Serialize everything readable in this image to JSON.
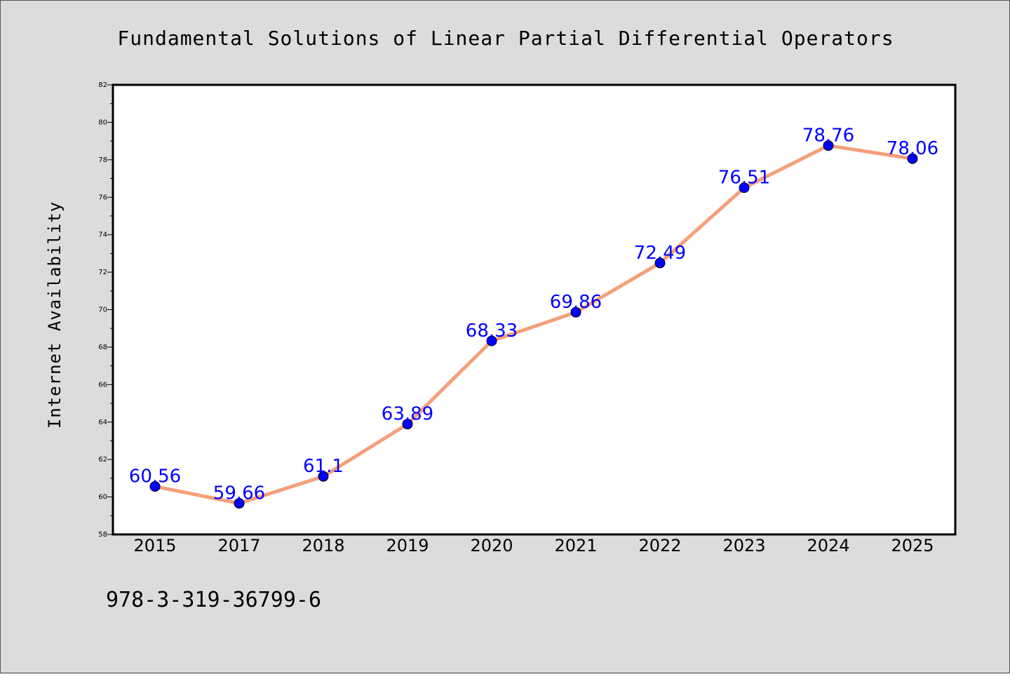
{
  "colors": {
    "background": "#dcdcdc",
    "plot_background": "#ffffff",
    "line": "#f4a07a",
    "marker": "#0000ff",
    "data_label": "#0000ff"
  },
  "footer_text": "978-3-319-36799-6",
  "chart_data": {
    "type": "line",
    "title": "Fundamental Solutions of Linear Partial Differential Operators",
    "xlabel": "",
    "ylabel": "Internet Availability",
    "categories": [
      "2015",
      "2017",
      "2018",
      "2019",
      "2020",
      "2021",
      "2022",
      "2023",
      "2024",
      "2025"
    ],
    "series": [
      {
        "values": [
          60.56,
          59.66,
          61.1,
          63.89,
          68.33,
          69.86,
          72.49,
          76.51,
          78.76,
          78.06
        ],
        "labels": [
          "60.56",
          "59.66",
          "61.1",
          "63.89",
          "68.33",
          "69.86",
          "72.49",
          "76.51",
          "78.76",
          "78.06"
        ]
      }
    ],
    "ylim": [
      58,
      82
    ],
    "yticks": [
      "58",
      "60",
      "62",
      "64",
      "66",
      "68",
      "70",
      "72",
      "74",
      "76",
      "78",
      "80",
      "82"
    ],
    "grid": false,
    "legend": "none"
  }
}
